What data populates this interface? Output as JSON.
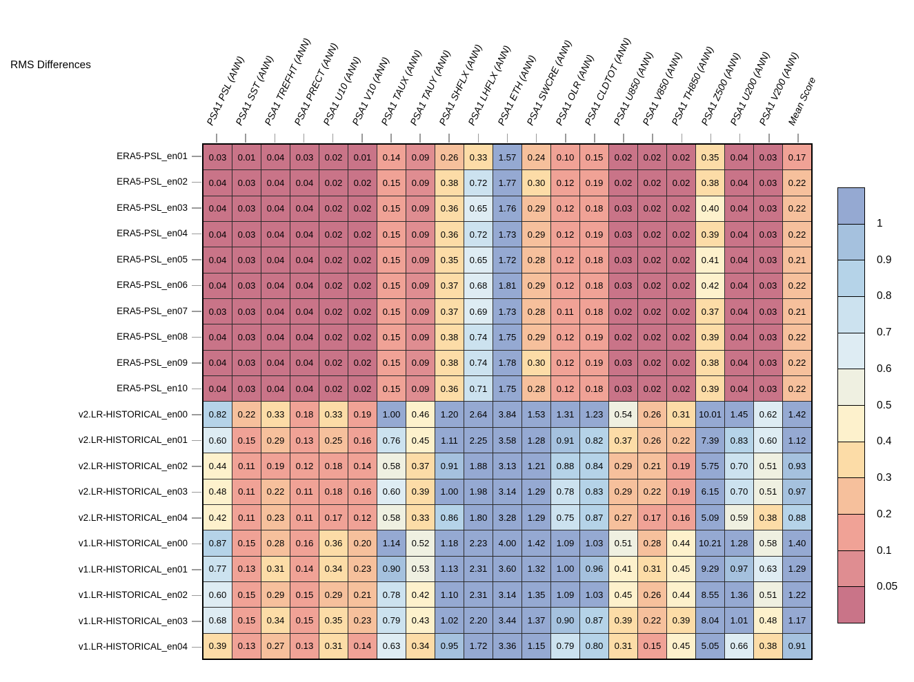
{
  "title": "RMS Differences",
  "chart_data": {
    "type": "heatmap",
    "title": "RMS Differences",
    "columns": [
      "PSA1 PSL (ANN)",
      "PSA1 SST (ANN)",
      "PSA1 TREFHT (ANN)",
      "PSA1 PRECT (ANN)",
      "PSA1 U10 (ANN)",
      "PSA1 V10 (ANN)",
      "PSA1 TAUX (ANN)",
      "PSA1 TAUY (ANN)",
      "PSA1 SHFLX (ANN)",
      "PSA1 LHFLX (ANN)",
      "PSA1 ETH (ANN)",
      "PSA1 SWCRE (ANN)",
      "PSA1 OLR (ANN)",
      "PSA1 CLDTOT (ANN)",
      "PSA1 U850 (ANN)",
      "PSA1 V850 (ANN)",
      "PSA1 TH850 (ANN)",
      "PSA1 Z500 (ANN)",
      "PSA1 U200 (ANN)",
      "PSA1 V200 (ANN)",
      "Mean Score"
    ],
    "rows": [
      "ERA5-PSL_en01",
      "ERA5-PSL_en02",
      "ERA5-PSL_en03",
      "ERA5-PSL_en04",
      "ERA5-PSL_en05",
      "ERA5-PSL_en06",
      "ERA5-PSL_en07",
      "ERA5-PSL_en08",
      "ERA5-PSL_en09",
      "ERA5-PSL_en10",
      "v2.LR-HISTORICAL_en00",
      "v2.LR-HISTORICAL_en01",
      "v2.LR-HISTORICAL_en02",
      "v2.LR-HISTORICAL_en03",
      "v2.LR-HISTORICAL_en04",
      "v1.LR-HISTORICAL_en00",
      "v1.LR-HISTORICAL_en01",
      "v1.LR-HISTORICAL_en02",
      "v1.LR-HISTORICAL_en03",
      "v1.LR-HISTORICAL_en04"
    ],
    "values": [
      [
        0.03,
        0.01,
        0.04,
        0.03,
        0.02,
        0.01,
        0.14,
        0.09,
        0.26,
        0.33,
        1.57,
        0.24,
        0.1,
        0.15,
        0.02,
        0.02,
        0.02,
        0.35,
        0.04,
        0.03,
        0.17
      ],
      [
        0.04,
        0.03,
        0.04,
        0.04,
        0.02,
        0.02,
        0.15,
        0.09,
        0.38,
        0.72,
        1.77,
        0.3,
        0.12,
        0.19,
        0.02,
        0.02,
        0.02,
        0.38,
        0.04,
        0.03,
        0.22
      ],
      [
        0.04,
        0.03,
        0.04,
        0.04,
        0.02,
        0.02,
        0.15,
        0.09,
        0.36,
        0.65,
        1.76,
        0.29,
        0.12,
        0.18,
        0.03,
        0.02,
        0.02,
        0.4,
        0.04,
        0.03,
        0.22
      ],
      [
        0.04,
        0.03,
        0.04,
        0.04,
        0.02,
        0.02,
        0.15,
        0.09,
        0.36,
        0.72,
        1.73,
        0.29,
        0.12,
        0.19,
        0.03,
        0.02,
        0.02,
        0.39,
        0.04,
        0.03,
        0.22
      ],
      [
        0.04,
        0.03,
        0.04,
        0.04,
        0.02,
        0.02,
        0.15,
        0.09,
        0.35,
        0.65,
        1.72,
        0.28,
        0.12,
        0.18,
        0.03,
        0.02,
        0.02,
        0.41,
        0.04,
        0.03,
        0.21
      ],
      [
        0.04,
        0.03,
        0.04,
        0.04,
        0.02,
        0.02,
        0.15,
        0.09,
        0.37,
        0.68,
        1.81,
        0.29,
        0.12,
        0.18,
        0.03,
        0.02,
        0.02,
        0.42,
        0.04,
        0.03,
        0.22
      ],
      [
        0.03,
        0.03,
        0.04,
        0.04,
        0.02,
        0.02,
        0.15,
        0.09,
        0.37,
        0.69,
        1.73,
        0.28,
        0.11,
        0.18,
        0.02,
        0.02,
        0.02,
        0.37,
        0.04,
        0.03,
        0.21
      ],
      [
        0.04,
        0.03,
        0.04,
        0.04,
        0.02,
        0.02,
        0.15,
        0.09,
        0.38,
        0.74,
        1.75,
        0.29,
        0.12,
        0.19,
        0.02,
        0.02,
        0.02,
        0.39,
        0.04,
        0.03,
        0.22
      ],
      [
        0.04,
        0.03,
        0.04,
        0.04,
        0.02,
        0.02,
        0.15,
        0.09,
        0.38,
        0.74,
        1.78,
        0.3,
        0.12,
        0.19,
        0.03,
        0.02,
        0.02,
        0.38,
        0.04,
        0.03,
        0.22
      ],
      [
        0.04,
        0.03,
        0.04,
        0.04,
        0.02,
        0.02,
        0.15,
        0.09,
        0.36,
        0.71,
        1.75,
        0.28,
        0.12,
        0.18,
        0.03,
        0.02,
        0.02,
        0.39,
        0.04,
        0.03,
        0.22
      ],
      [
        0.82,
        0.22,
        0.33,
        0.18,
        0.33,
        0.19,
        1.0,
        0.46,
        1.2,
        2.64,
        3.84,
        1.53,
        1.31,
        1.23,
        0.54,
        0.26,
        0.31,
        10.01,
        1.45,
        0.62,
        1.42
      ],
      [
        0.6,
        0.15,
        0.29,
        0.13,
        0.25,
        0.16,
        0.76,
        0.45,
        1.11,
        2.25,
        3.58,
        1.28,
        0.91,
        0.82,
        0.37,
        0.26,
        0.22,
        7.39,
        0.83,
        0.6,
        1.12
      ],
      [
        0.44,
        0.11,
        0.19,
        0.12,
        0.18,
        0.14,
        0.58,
        0.37,
        0.91,
        1.88,
        3.13,
        1.21,
        0.88,
        0.84,
        0.29,
        0.21,
        0.19,
        5.75,
        0.7,
        0.51,
        0.93
      ],
      [
        0.48,
        0.11,
        0.22,
        0.11,
        0.18,
        0.16,
        0.6,
        0.39,
        1.0,
        1.98,
        3.14,
        1.29,
        0.78,
        0.83,
        0.29,
        0.22,
        0.19,
        6.15,
        0.7,
        0.51,
        0.97
      ],
      [
        0.42,
        0.11,
        0.23,
        0.11,
        0.17,
        0.12,
        0.58,
        0.33,
        0.86,
        1.8,
        3.28,
        1.29,
        0.75,
        0.87,
        0.27,
        0.17,
        0.16,
        5.09,
        0.59,
        0.38,
        0.88
      ],
      [
        0.87,
        0.15,
        0.28,
        0.16,
        0.36,
        0.2,
        1.14,
        0.52,
        1.18,
        2.23,
        4.0,
        1.42,
        1.09,
        1.03,
        0.51,
        0.28,
        0.44,
        10.21,
        1.28,
        0.58,
        1.4
      ],
      [
        0.77,
        0.13,
        0.31,
        0.14,
        0.34,
        0.23,
        0.9,
        0.53,
        1.13,
        2.31,
        3.6,
        1.32,
        1.0,
        0.96,
        0.41,
        0.31,
        0.45,
        9.29,
        0.97,
        0.63,
        1.29
      ],
      [
        0.6,
        0.15,
        0.29,
        0.15,
        0.29,
        0.21,
        0.78,
        0.42,
        1.1,
        2.31,
        3.14,
        1.35,
        1.09,
        1.03,
        0.45,
        0.26,
        0.44,
        8.55,
        1.36,
        0.51,
        1.22
      ],
      [
        0.68,
        0.15,
        0.34,
        0.15,
        0.35,
        0.23,
        0.79,
        0.43,
        1.02,
        2.2,
        3.44,
        1.37,
        0.9,
        0.87,
        0.39,
        0.22,
        0.39,
        8.04,
        1.01,
        0.48,
        1.17
      ],
      [
        0.39,
        0.13,
        0.27,
        0.13,
        0.31,
        0.14,
        0.63,
        0.34,
        0.95,
        1.72,
        3.36,
        1.15,
        0.79,
        0.8,
        0.31,
        0.15,
        0.45,
        5.05,
        0.66,
        0.38,
        0.91
      ]
    ],
    "value_format_decimals": 2,
    "colorbar": {
      "tick_labels": [
        "1",
        "0.9",
        "0.8",
        "0.7",
        "0.6",
        "0.5",
        "0.4",
        "0.3",
        "0.2",
        "0.1",
        "0.05"
      ],
      "thresholds": [
        1,
        0.9,
        0.8,
        0.7,
        0.6,
        0.5,
        0.4,
        0.3,
        0.2,
        0.1,
        0.05
      ],
      "colors": [
        "#95a9d2",
        "#a5c1de",
        "#b5d3e8",
        "#cce2ef",
        "#deecf3",
        "#eff0e1",
        "#fdf1cc",
        "#fcdca7",
        "#f6c09c",
        "#f0a296",
        "#df8d91",
        "#c97488"
      ],
      "position": "right"
    },
    "grid": true
  }
}
